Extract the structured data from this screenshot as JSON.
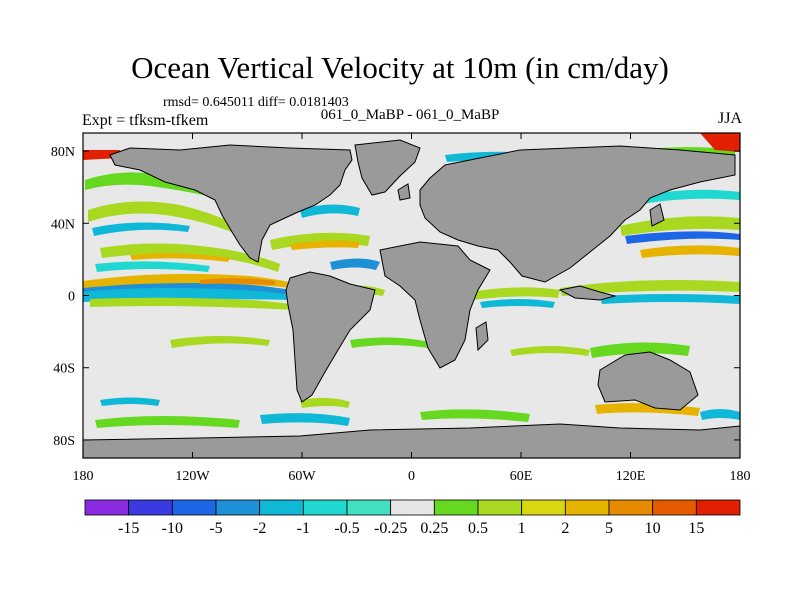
{
  "title": "Ocean Vertical Velocity at 10m (in cm/day)",
  "stats": "rmsd= 0.645011 diff= 0.0181403",
  "subtitle": "061_0_MaBP - 061_0_MaBP",
  "expt": "Expt = tfksm-tfkem",
  "season": "JJA",
  "map": {
    "lon_range": [
      -180,
      180
    ],
    "lat_range": [
      -90,
      90
    ],
    "x_ticks": [
      {
        "value": -180,
        "label": "180"
      },
      {
        "value": -120,
        "label": "120W"
      },
      {
        "value": -60,
        "label": "60W"
      },
      {
        "value": 0,
        "label": "0"
      },
      {
        "value": 60,
        "label": "60E"
      },
      {
        "value": 120,
        "label": "120E"
      },
      {
        "value": 180,
        "label": "180"
      }
    ],
    "y_ticks": [
      {
        "value": 80,
        "label": "80N"
      },
      {
        "value": 40,
        "label": "40N"
      },
      {
        "value": 0,
        "label": "0"
      },
      {
        "value": -40,
        "label": "40S"
      },
      {
        "value": -80,
        "label": "80S"
      }
    ],
    "colors": {
      "land": "#9a9a9a",
      "ocean_background": "#e8e8e8",
      "coast": "#000000"
    }
  },
  "colorbar": {
    "colors": [
      "#8a2be2",
      "#3a3ae0",
      "#1e66e8",
      "#1e90d8",
      "#10b8d8",
      "#20d8d0",
      "#40e0c0",
      "#e6e6e6",
      "#66d820",
      "#a8d820",
      "#d8d810",
      "#e6b400",
      "#e68a00",
      "#e65a00",
      "#e02000"
    ],
    "labels": [
      "-15",
      "-10",
      "-5",
      "-2",
      "-1",
      "-0.5",
      "-0.25",
      "0.25",
      "0.5",
      "1",
      "2",
      "5",
      "10",
      "15"
    ]
  }
}
